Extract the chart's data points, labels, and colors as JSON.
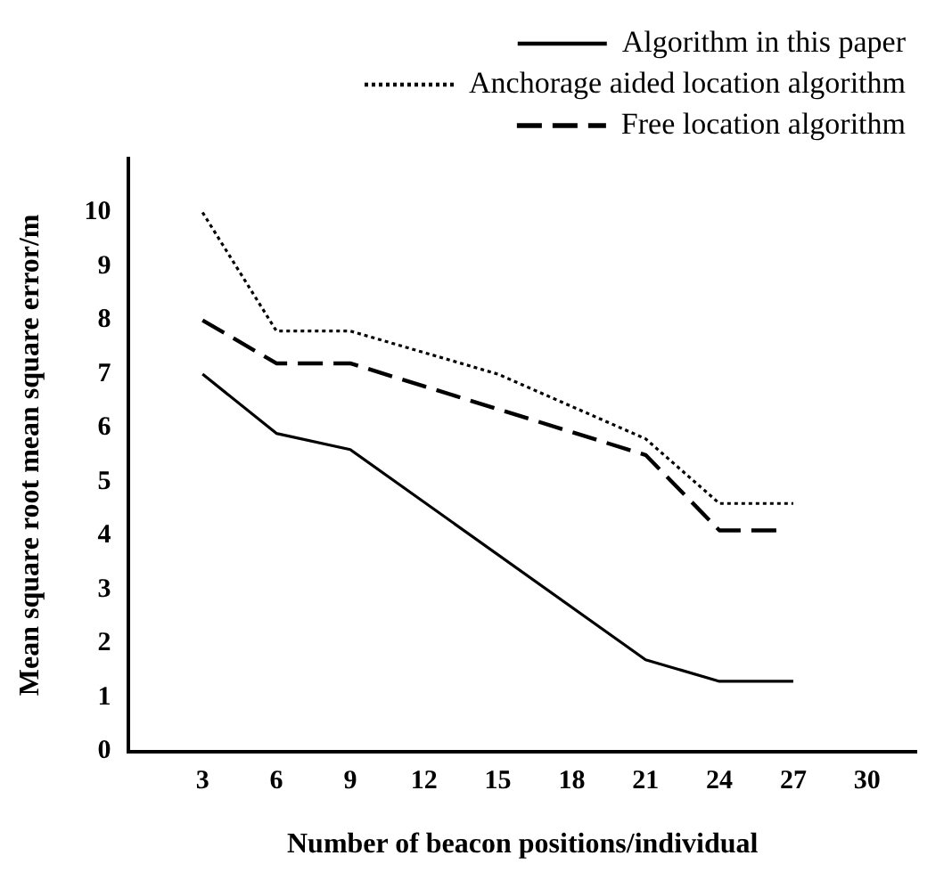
{
  "chart_data": {
    "type": "line",
    "xlabel": "Number of beacon positions/individual",
    "ylabel": "Mean square root mean square error/m",
    "xlim": [
      0,
      32
    ],
    "xticks": [
      3,
      6,
      9,
      12,
      15,
      18,
      21,
      24,
      27,
      30
    ],
    "ylim": [
      0,
      11
    ],
    "yticks": [
      0,
      1,
      2,
      3,
      4,
      5,
      6,
      7,
      8,
      9,
      10
    ],
    "legend": "top right",
    "grid": false,
    "marker": "none",
    "series": [
      {
        "name": "Algorithm in this paper",
        "color": "#000000",
        "line_style": "solid",
        "x": [
          3,
          6,
          9,
          21,
          24,
          27
        ],
        "values": [
          7,
          5.9,
          5.6,
          1.7,
          1.3,
          1.3
        ]
      },
      {
        "name": "Anchorage aided location algorithm",
        "color": "#000000",
        "line_style": "dotted",
        "x": [
          3,
          6,
          9,
          15,
          21,
          24,
          27
        ],
        "values": [
          10,
          7.8,
          7.8,
          7,
          5.8,
          4.6,
          4.6
        ]
      },
      {
        "name": "Free location algorithm",
        "color": "#000000",
        "line_style": "dashed",
        "x": [
          3,
          6,
          9,
          21,
          24,
          26.5
        ],
        "values": [
          8,
          7.2,
          7.2,
          5.5,
          4.1,
          4.1
        ]
      }
    ]
  }
}
